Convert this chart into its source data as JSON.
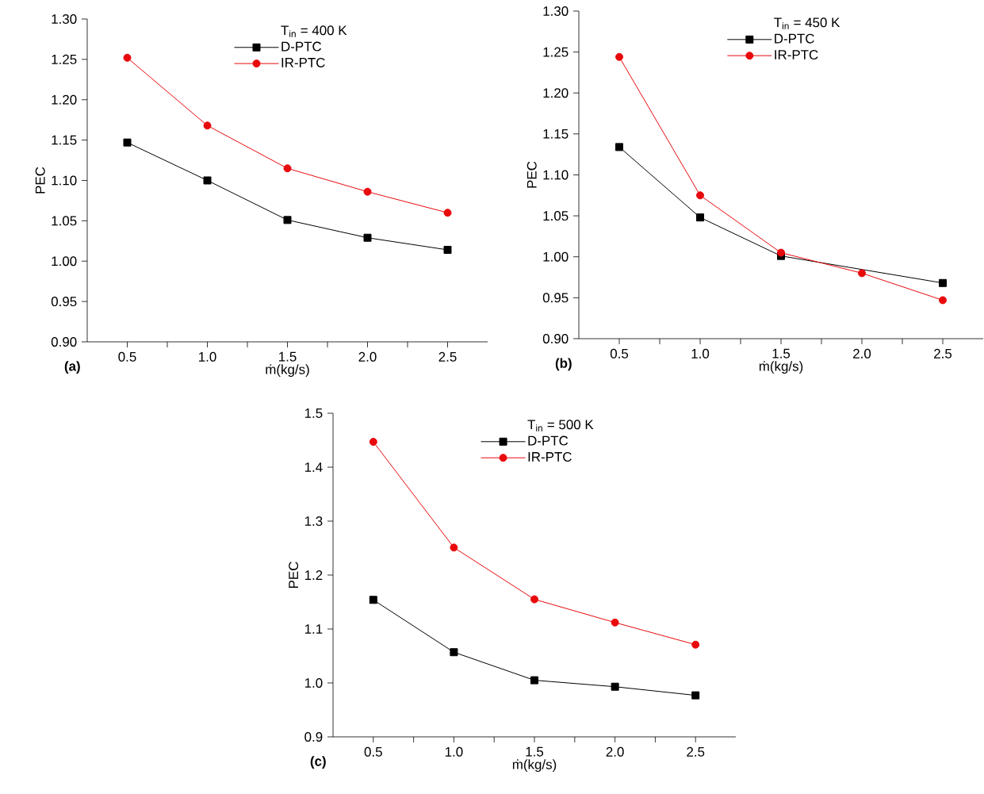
{
  "chart_data": [
    {
      "type": "line",
      "xlabel": "ṁ(kg/s)",
      "ylabel": "PEC",
      "legend_title": "T$_{in}$ = 400 K",
      "annotations": [
        "(a)"
      ],
      "x": [
        0.5,
        1.0,
        1.5,
        2.0,
        2.5
      ],
      "series": [
        {
          "name": "D-PTC",
          "color": "#000000",
          "marker": "square",
          "values": [
            1.147,
            1.1,
            1.051,
            1.029,
            1.014
          ]
        },
        {
          "name": "IR-PTC",
          "color": "#e8090c",
          "marker": "circle",
          "values": [
            1.252,
            1.168,
            1.115,
            1.086,
            1.06
          ]
        }
      ],
      "xlim": [
        0.25,
        2.75
      ],
      "xticks": [
        0.5,
        {
          "value": 0.75,
          "label": null
        },
        {
          "value": 1,
          "label": "1.0"
        },
        {
          "value": 1.25,
          "label": null
        },
        1.5,
        {
          "value": 1.75,
          "label": null
        },
        {
          "value": 2,
          "label": "2.0"
        },
        {
          "value": 2.25,
          "label": null
        },
        2.5
      ],
      "ylim": [
        0.9,
        1.3
      ],
      "yticks": [
        {
          "value": 0.9,
          "label": "0.90"
        },
        0.95,
        {
          "value": 1,
          "label": "1.00"
        },
        1.05,
        {
          "value": 1.1,
          "label": "1.10"
        },
        1.15,
        {
          "value": 1.2,
          "label": "1.20"
        },
        1.25,
        {
          "value": 1.3,
          "label": "1.30"
        }
      ],
      "legend": "top",
      "grid": false,
      "line_style": "solid"
    },
    {
      "type": "line",
      "xlabel": "ṁ(kg/s)",
      "ylabel": "PEC",
      "legend_title": "T$_{in}$ = 450 K",
      "annotations": [
        "(b)"
      ],
      "x": [
        0.5,
        1.0,
        1.5,
        2.0,
        2.5
      ],
      "series": [
        {
          "name": "D-PTC",
          "color": "#000000",
          "marker": "square",
          "values": [
            1.134,
            1.048,
            1.001,
            null,
            0.968
          ]
        },
        {
          "name": "IR-PTC",
          "color": "#e8090c",
          "marker": "circle",
          "values": [
            1.244,
            1.075,
            1.005,
            0.98,
            0.947
          ]
        }
      ],
      "xlim": [
        0.25,
        2.75
      ],
      "xticks": [
        0.5,
        {
          "value": 0.75,
          "label": null
        },
        {
          "value": 1,
          "label": "1.0"
        },
        {
          "value": 1.25,
          "label": null
        },
        1.5,
        {
          "value": 1.75,
          "label": null
        },
        {
          "value": 2,
          "label": "2.0"
        },
        {
          "value": 2.25,
          "label": null
        },
        2.5
      ],
      "ylim": [
        0.9,
        1.3
      ],
      "yticks": [
        {
          "value": 0.9,
          "label": "0.90"
        },
        0.95,
        {
          "value": 1,
          "label": "1.00"
        },
        1.05,
        {
          "value": 1.1,
          "label": "1.10"
        },
        1.15,
        {
          "value": 1.2,
          "label": "1.20"
        },
        1.25,
        {
          "value": 1.3,
          "label": "1.30"
        }
      ],
      "legend": "top",
      "grid": false,
      "line_style": "solid"
    },
    {
      "type": "line",
      "xlabel": "ṁ(kg/s)",
      "ylabel": "PEC",
      "legend_title": "T$_{in}$ = 500 K",
      "annotations": [
        "(c)"
      ],
      "x": [
        0.5,
        1.0,
        1.5,
        2.0,
        2.5
      ],
      "series": [
        {
          "name": "D-PTC",
          "color": "#000000",
          "marker": "square",
          "values": [
            1.154,
            1.057,
            1.005,
            0.993,
            0.977
          ]
        },
        {
          "name": "IR-PTC",
          "color": "#e8090c",
          "marker": "circle",
          "values": [
            1.447,
            1.251,
            1.155,
            1.112,
            1.071
          ]
        }
      ],
      "xlim": [
        0.25,
        2.75
      ],
      "xticks": [
        0.5,
        {
          "value": 0.75,
          "label": null
        },
        {
          "value": 1,
          "label": "1.0"
        },
        {
          "value": 1.25,
          "label": null
        },
        1.5,
        {
          "value": 1.75,
          "label": null
        },
        {
          "value": 2,
          "label": "2.0"
        },
        {
          "value": 2.25,
          "label": null
        },
        2.5
      ],
      "ylim": [
        0.9,
        1.5
      ],
      "yticks": [
        0.9,
        {
          "value": 1,
          "label": "1.0"
        },
        1.1,
        1.2,
        1.3,
        1.4,
        1.5
      ],
      "legend": "top",
      "grid": false,
      "line_style": "solid"
    }
  ]
}
